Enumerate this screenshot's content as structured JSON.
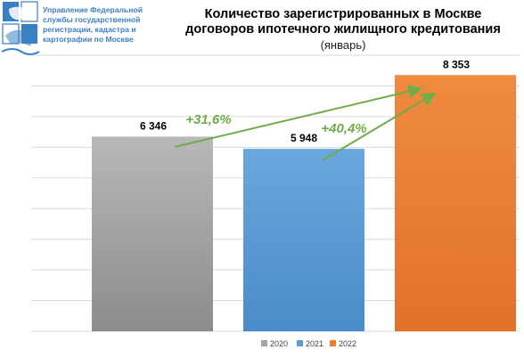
{
  "org": {
    "name": "Управление Федеральной службы государственной регистрации, кадастра и картографии по Москве",
    "logo_icon": "rosreestr-emblem-icon"
  },
  "chart_data": {
    "type": "bar",
    "title_line_1": "Количество зарегистрированных в Москве",
    "title_line_2": "договоров ипотечного жилищного кредитования",
    "subtitle": "(январь)",
    "categories": [
      "2020",
      "2021",
      "2022"
    ],
    "values": [
      6346,
      5948,
      8353
    ],
    "value_labels": [
      "6 346",
      "5 948",
      "8 353"
    ],
    "colors": [
      "#a5a5a5",
      "#5b9bd5",
      "#ed7d31"
    ],
    "legend": [
      "2020",
      "2021",
      "2022"
    ],
    "legend_position": "bottom",
    "ylim": [
      0,
      9000
    ],
    "grid": true,
    "axis_labels_shown": false,
    "annotations": [
      {
        "label": "+31,6%",
        "from": "2020",
        "to": "2022"
      },
      {
        "label": "+40,4%",
        "from": "2021",
        "to": "2022"
      }
    ],
    "annotation_color": "#70ad47"
  }
}
